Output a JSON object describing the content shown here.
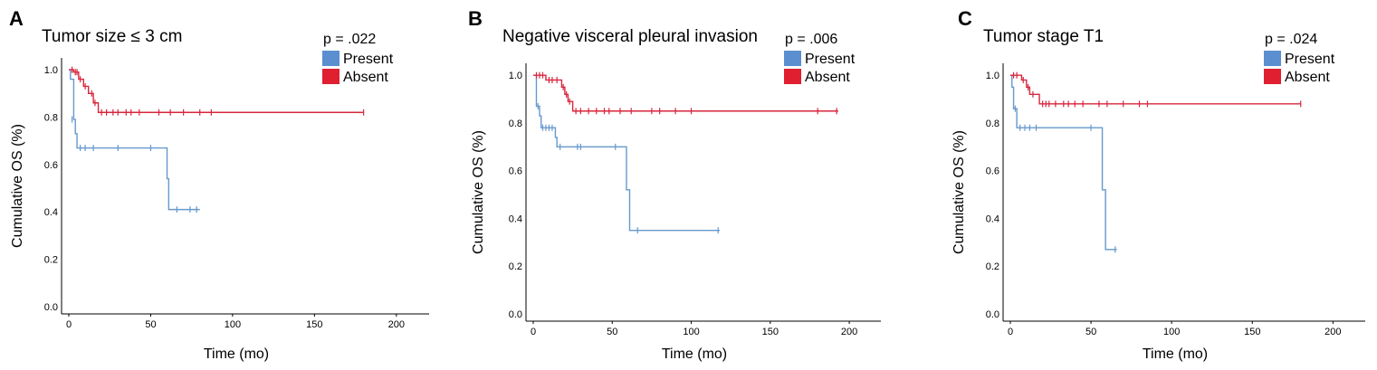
{
  "colors": {
    "present": "#6699cc",
    "absent": "#d7263d",
    "present_swatch": "#5b8fd0",
    "absent_swatch": "#e02030"
  },
  "chart_data": [
    {
      "type": "line",
      "panel_letter": "A",
      "title": "Tumor size ≤ 3 cm",
      "xlabel": "Time (mo)",
      "ylabel": "Cumulative OS (%)",
      "xlim": [
        0,
        220
      ],
      "ylim": [
        0,
        1.05
      ],
      "xticks": [
        0,
        50,
        100,
        150,
        200
      ],
      "yticks": [
        0.0,
        0.2,
        0.4,
        0.6,
        0.8,
        1.0
      ],
      "xtick_labels": [
        "0",
        "50",
        "100",
        "150",
        "200"
      ],
      "ytick_labels": [
        "0.0",
        "0.2",
        "0.4",
        "0.6",
        "0.8",
        "1.0"
      ],
      "p_value": "p = .022",
      "legend": [
        "Present",
        "Absent"
      ],
      "series": [
        {
          "name": "Present",
          "color_key": "present",
          "steps": [
            [
              0,
              1.0
            ],
            [
              1,
              0.96
            ],
            [
              3,
              0.79
            ],
            [
              4,
              0.73
            ],
            [
              5,
              0.67
            ],
            [
              60,
              0.54
            ],
            [
              61,
              0.41
            ],
            [
              80,
              0.41
            ]
          ],
          "censored": [
            [
              2,
              0.79
            ],
            [
              7,
              0.67
            ],
            [
              10,
              0.67
            ],
            [
              15,
              0.67
            ],
            [
              30,
              0.67
            ],
            [
              50,
              0.67
            ],
            [
              66,
              0.41
            ],
            [
              74,
              0.41
            ],
            [
              78,
              0.41
            ]
          ]
        },
        {
          "name": "Absent",
          "color_key": "absent",
          "steps": [
            [
              0,
              1.0
            ],
            [
              3,
              0.99
            ],
            [
              6,
              0.96
            ],
            [
              9,
              0.93
            ],
            [
              12,
              0.9
            ],
            [
              15,
              0.86
            ],
            [
              18,
              0.82
            ],
            [
              180,
              0.82
            ]
          ],
          "censored": [
            [
              2,
              1.0
            ],
            [
              4,
              0.99
            ],
            [
              5,
              0.99
            ],
            [
              7,
              0.96
            ],
            [
              10,
              0.93
            ],
            [
              14,
              0.9
            ],
            [
              16,
              0.86
            ],
            [
              20,
              0.82
            ],
            [
              23,
              0.82
            ],
            [
              27,
              0.82
            ],
            [
              30,
              0.82
            ],
            [
              35,
              0.82
            ],
            [
              38,
              0.82
            ],
            [
              43,
              0.82
            ],
            [
              55,
              0.82
            ],
            [
              62,
              0.82
            ],
            [
              70,
              0.82
            ],
            [
              80,
              0.82
            ],
            [
              87,
              0.82
            ],
            [
              180,
              0.82
            ]
          ]
        }
      ]
    },
    {
      "type": "line",
      "panel_letter": "B",
      "title": "Negative visceral pleural invasion",
      "xlabel": "Time (mo)",
      "ylabel": "Cumulative OS (%)",
      "xlim": [
        0,
        220
      ],
      "ylim": [
        0,
        1.05
      ],
      "xticks": [
        0,
        50,
        100,
        150,
        200
      ],
      "yticks": [
        0.0,
        0.2,
        0.4,
        0.6,
        0.8,
        1.0
      ],
      "xtick_labels": [
        "0",
        "50",
        "100",
        "150",
        "200"
      ],
      "ytick_labels": [
        "0.0",
        "0.2",
        "0.4",
        "0.6",
        "0.8",
        "1.0"
      ],
      "p_value": "p = .006",
      "legend": [
        "Present",
        "Absent"
      ],
      "series": [
        {
          "name": "Present",
          "color_key": "present",
          "steps": [
            [
              0,
              1.0
            ],
            [
              2,
              0.87
            ],
            [
              4,
              0.83
            ],
            [
              5,
              0.78
            ],
            [
              14,
              0.74
            ],
            [
              15,
              0.7
            ],
            [
              59,
              0.52
            ],
            [
              61,
              0.35
            ],
            [
              118,
              0.35
            ]
          ],
          "censored": [
            [
              3,
              0.87
            ],
            [
              6,
              0.78
            ],
            [
              8,
              0.78
            ],
            [
              10,
              0.78
            ],
            [
              12,
              0.78
            ],
            [
              17,
              0.7
            ],
            [
              28,
              0.7
            ],
            [
              30,
              0.7
            ],
            [
              52,
              0.7
            ],
            [
              66,
              0.35
            ],
            [
              117,
              0.35
            ]
          ]
        },
        {
          "name": "Absent",
          "color_key": "absent",
          "steps": [
            [
              0,
              1.0
            ],
            [
              8,
              0.98
            ],
            [
              18,
              0.95
            ],
            [
              20,
              0.92
            ],
            [
              22,
              0.89
            ],
            [
              25,
              0.85
            ],
            [
              193,
              0.85
            ]
          ],
          "censored": [
            [
              2,
              1.0
            ],
            [
              4,
              1.0
            ],
            [
              6,
              1.0
            ],
            [
              10,
              0.98
            ],
            [
              12,
              0.98
            ],
            [
              15,
              0.98
            ],
            [
              19,
              0.95
            ],
            [
              21,
              0.92
            ],
            [
              23,
              0.89
            ],
            [
              27,
              0.85
            ],
            [
              30,
              0.85
            ],
            [
              35,
              0.85
            ],
            [
              40,
              0.85
            ],
            [
              45,
              0.85
            ],
            [
              48,
              0.85
            ],
            [
              55,
              0.85
            ],
            [
              62,
              0.85
            ],
            [
              75,
              0.85
            ],
            [
              80,
              0.85
            ],
            [
              90,
              0.85
            ],
            [
              100,
              0.85
            ],
            [
              180,
              0.85
            ],
            [
              192,
              0.85
            ]
          ]
        }
      ]
    },
    {
      "type": "line",
      "panel_letter": "C",
      "title": "Tumor stage T1",
      "xlabel": "Time (mo)",
      "ylabel": "Cumulative OS (%)",
      "xlim": [
        0,
        220
      ],
      "ylim": [
        0,
        1.05
      ],
      "xticks": [
        0,
        50,
        100,
        150,
        200
      ],
      "yticks": [
        0.0,
        0.2,
        0.4,
        0.6,
        0.8,
        1.0
      ],
      "xtick_labels": [
        "0",
        "50",
        "100",
        "150",
        "200"
      ],
      "ytick_labels": [
        "0.0",
        "0.2",
        "0.4",
        "0.6",
        "0.8",
        "1.0"
      ],
      "p_value": "p = .024",
      "legend": [
        "Present",
        "Absent"
      ],
      "series": [
        {
          "name": "Present",
          "color_key": "present",
          "steps": [
            [
              0,
              1.0
            ],
            [
              1,
              0.95
            ],
            [
              2,
              0.86
            ],
            [
              4,
              0.78
            ],
            [
              57,
              0.52
            ],
            [
              59,
              0.27
            ],
            [
              66,
              0.27
            ]
          ],
          "censored": [
            [
              3,
              0.86
            ],
            [
              6,
              0.78
            ],
            [
              9,
              0.78
            ],
            [
              12,
              0.78
            ],
            [
              16,
              0.78
            ],
            [
              50,
              0.78
            ],
            [
              65,
              0.27
            ]
          ]
        },
        {
          "name": "Absent",
          "color_key": "absent",
          "steps": [
            [
              0,
              1.0
            ],
            [
              7,
              0.98
            ],
            [
              10,
              0.95
            ],
            [
              12,
              0.92
            ],
            [
              18,
              0.88
            ],
            [
              180,
              0.88
            ]
          ],
          "censored": [
            [
              2,
              1.0
            ],
            [
              4,
              1.0
            ],
            [
              8,
              0.98
            ],
            [
              11,
              0.95
            ],
            [
              14,
              0.92
            ],
            [
              20,
              0.88
            ],
            [
              22,
              0.88
            ],
            [
              24,
              0.88
            ],
            [
              28,
              0.88
            ],
            [
              33,
              0.88
            ],
            [
              36,
              0.88
            ],
            [
              40,
              0.88
            ],
            [
              45,
              0.88
            ],
            [
              55,
              0.88
            ],
            [
              60,
              0.88
            ],
            [
              70,
              0.88
            ],
            [
              80,
              0.88
            ],
            [
              85,
              0.88
            ],
            [
              180,
              0.88
            ]
          ]
        }
      ]
    }
  ]
}
